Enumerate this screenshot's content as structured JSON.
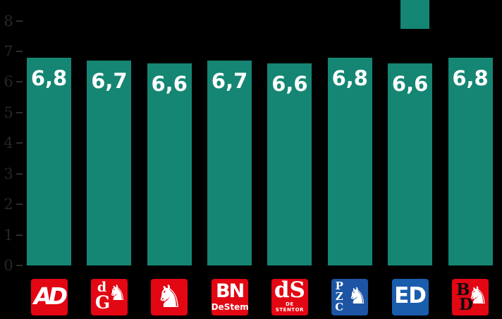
{
  "chart_data": {
    "type": "bar",
    "title": "",
    "categories": [
      "AD",
      "de Gelderlander",
      "Tubantia",
      "BN DeStem",
      "de Stentor",
      "PZC",
      "ED",
      "BD"
    ],
    "values": [
      6.8,
      6.7,
      6.6,
      6.7,
      6.6,
      6.8,
      6.6,
      6.8
    ],
    "value_labels": [
      "6,8",
      "6,7",
      "6,6",
      "6,7",
      "6,6",
      "6,8",
      "6,6",
      "6,8"
    ],
    "xlabel": "",
    "ylabel": "",
    "ylim": [
      0,
      8
    ],
    "yticks": [
      0,
      1,
      2,
      3,
      4,
      5,
      6,
      7,
      8
    ],
    "ytick_labels": [
      "0",
      "1",
      "2",
      "3",
      "4",
      "5",
      "6",
      "7",
      "8"
    ],
    "grid": false,
    "legend": {
      "position": "top-right",
      "swatch_color": "#148673"
    }
  },
  "colors": {
    "background": "#000000",
    "bar": "#148673",
    "bar_label": "#FFFFFF",
    "axis_label": "#262626",
    "tick": "#2E2E2E",
    "logo_red": "#E30613",
    "logo_blue_pzc": "#1D55A4",
    "logo_blue_ed": "#1A5DAD"
  },
  "icons": {
    "heraldic_animal_glyph": "♞"
  },
  "logos": {
    "ad": {
      "text": "AD"
    },
    "gelderlander": {
      "letter_top": "d",
      "letter_bottom": "G"
    },
    "bndestem": {
      "text_top": "BN",
      "text_bottom": "DeStem"
    },
    "destentor": {
      "text_top": "dS",
      "text_bottom": "DE STENTOR"
    },
    "pzc": {
      "letters": [
        "P",
        "Z",
        "C"
      ]
    },
    "ed": {
      "text": "ED"
    },
    "bd": {
      "letter_top": "B",
      "letter_bottom": "D"
    }
  }
}
